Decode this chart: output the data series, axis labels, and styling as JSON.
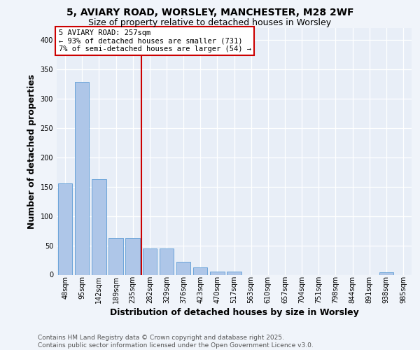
{
  "title_line1": "5, AVIARY ROAD, WORSLEY, MANCHESTER, M28 2WF",
  "title_line2": "Size of property relative to detached houses in Worsley",
  "xlabel": "Distribution of detached houses by size in Worsley",
  "ylabel": "Number of detached properties",
  "categories": [
    "48sqm",
    "95sqm",
    "142sqm",
    "189sqm",
    "235sqm",
    "282sqm",
    "329sqm",
    "376sqm",
    "423sqm",
    "470sqm",
    "517sqm",
    "563sqm",
    "610sqm",
    "657sqm",
    "704sqm",
    "751sqm",
    "798sqm",
    "844sqm",
    "891sqm",
    "938sqm",
    "985sqm"
  ],
  "values": [
    155,
    328,
    163,
    62,
    62,
    45,
    45,
    22,
    12,
    5,
    5,
    0,
    0,
    0,
    0,
    0,
    0,
    0,
    0,
    4,
    0
  ],
  "bar_color": "#aec6e8",
  "bar_edge_color": "#5b9bd5",
  "vline_color": "#cc0000",
  "annotation_title": "5 AVIARY ROAD: 257sqm",
  "annotation_line1": "← 93% of detached houses are smaller (731)",
  "annotation_line2": "7% of semi-detached houses are larger (54) →",
  "annotation_box_edgecolor": "#cc0000",
  "ylim": [
    0,
    420
  ],
  "yticks": [
    0,
    50,
    100,
    150,
    200,
    250,
    300,
    350,
    400
  ],
  "footer_line1": "Contains HM Land Registry data © Crown copyright and database right 2025.",
  "footer_line2": "Contains public sector information licensed under the Open Government Licence v3.0.",
  "fig_bg_color": "#f0f4fa",
  "axes_bg_color": "#e8eef7",
  "grid_color": "#ffffff",
  "title_fontsize": 10,
  "subtitle_fontsize": 9,
  "axis_label_fontsize": 9,
  "tick_fontsize": 7,
  "annotation_fontsize": 7.5,
  "footer_fontsize": 6.5
}
